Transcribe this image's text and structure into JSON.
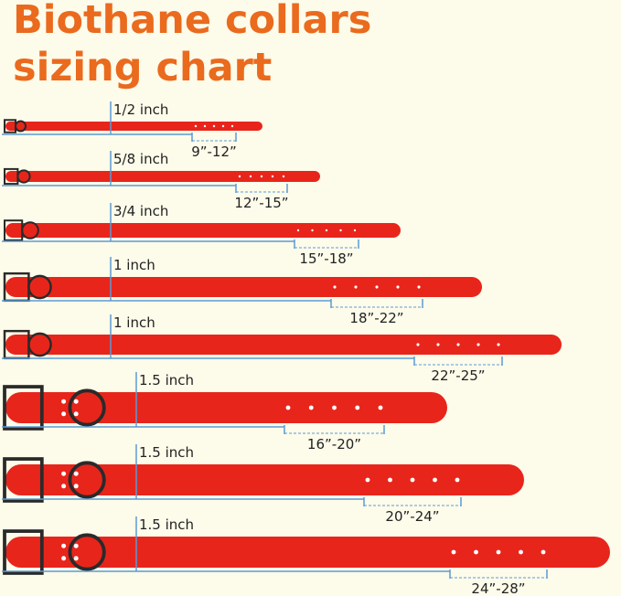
{
  "header": {
    "title_lines": [
      "Biothane collars",
      "sizing chart"
    ]
  },
  "rows": [
    {
      "width": "1/2 inch",
      "range": "9”-12”"
    },
    {
      "width": "5/8 inch",
      "range": "12”-15”"
    },
    {
      "width": "3/4 inch",
      "range": "15”-18”"
    },
    {
      "width": "1 inch",
      "range": "18”-22”"
    },
    {
      "width": "1 inch",
      "range": "22”-25”"
    },
    {
      "width": "1.5 inch",
      "range": "16”-20”"
    },
    {
      "width": "1.5 inch",
      "range": "20”-24”"
    },
    {
      "width": "1.5 inch",
      "range": "24”-28”"
    }
  ]
}
